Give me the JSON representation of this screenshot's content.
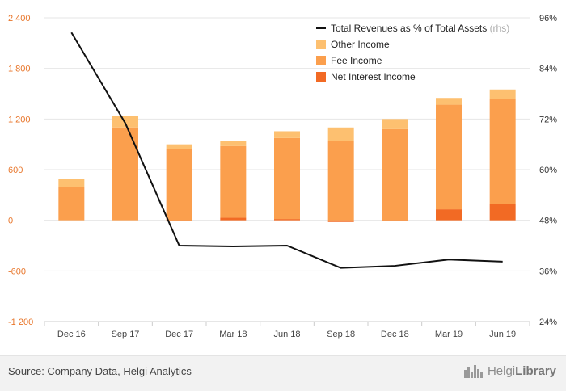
{
  "chart_data": {
    "type": "bar",
    "stacked": true,
    "categories": [
      "Dec 16",
      "Sep 17",
      "Dec 17",
      "Mar 18",
      "Jun 18",
      "Sep 18",
      "Dec 18",
      "Mar 19",
      "Jun 19"
    ],
    "series": [
      {
        "name": "Net Interest Income",
        "color": "#f26a24",
        "values": [
          0,
          0,
          -10,
          30,
          15,
          -20,
          -10,
          130,
          190
        ]
      },
      {
        "name": "Fee Income",
        "color": "#fb9f4d",
        "values": [
          390,
          1100,
          840,
          850,
          960,
          940,
          1080,
          1240,
          1250
        ]
      },
      {
        "name": "Other Income",
        "color": "#fdc070",
        "values": [
          100,
          140,
          60,
          60,
          80,
          160,
          120,
          80,
          110
        ]
      }
    ],
    "line_series": {
      "name": "Total Revenues as % of Total Assets",
      "axis_note": "(rhs)",
      "color": "#111111",
      "values": [
        92.5,
        71,
        42,
        41.8,
        42,
        36.7,
        37.2,
        38.7,
        38.2
      ]
    },
    "y_left": {
      "min": -1200,
      "max": 2400,
      "ticks": [
        "-1 200",
        "-600",
        "0",
        "600",
        "1 200",
        "1 800",
        "2 400"
      ],
      "tick_values": [
        -1200,
        -600,
        0,
        600,
        1200,
        1800,
        2400
      ]
    },
    "y_right": {
      "min": 24,
      "max": 96,
      "ticks": [
        "24%",
        "36%",
        "48%",
        "60%",
        "72%",
        "84%",
        "96%"
      ],
      "tick_values": [
        24,
        36,
        48,
        60,
        72,
        84,
        96
      ]
    },
    "legend_position": "top-right",
    "grid": true
  },
  "footer": {
    "source": "Source: Company Data, Helgi Analytics",
    "logo_light": "Helgi",
    "logo_bold": "Library"
  }
}
